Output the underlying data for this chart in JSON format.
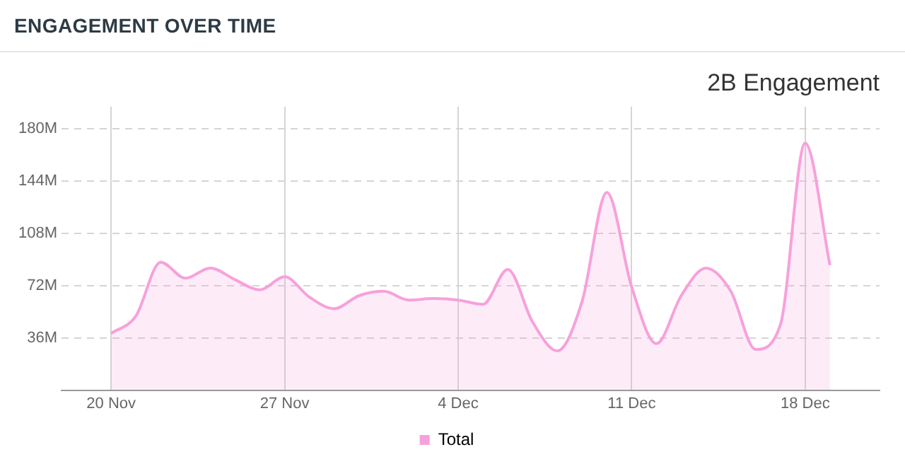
{
  "chart_data": {
    "type": "area",
    "title": "ENGAGEMENT OVER TIME",
    "subtitle": "2B Engagement",
    "x": [
      "--11-20",
      "--11-21",
      "--11-22",
      "--11-23",
      "--11-24",
      "--11-25",
      "--11-26",
      "--11-27",
      "--11-28",
      "--11-29",
      "--11-30",
      "--12-01",
      "--12-02",
      "--12-03",
      "--12-04",
      "--12-05",
      "--12-06",
      "--12-07",
      "--12-08",
      "--12-09",
      "--12-10",
      "--12-11",
      "--12-12",
      "--12-13",
      "--12-14",
      "--12-15",
      "--12-16",
      "--12-17",
      "--12-18",
      "--12-19"
    ],
    "series": [
      {
        "name": "Total",
        "color": "#f7a1db",
        "values": [
          39,
          51,
          88,
          77,
          84,
          76,
          69,
          78,
          64,
          56,
          65,
          68,
          62,
          63,
          62,
          59,
          83,
          47,
          27,
          61,
          136,
          71,
          32,
          65,
          84,
          68,
          28,
          45,
          170,
          86
        ]
      }
    ],
    "xlim": [
      "--11-18",
      "--12-21"
    ],
    "xticks": [
      {
        "value": "--11-20",
        "label": "20 Nov"
      },
      {
        "value": "--11-27",
        "label": "27 Nov"
      },
      {
        "value": "--12-04",
        "label": "4 Dec"
      },
      {
        "value": "--12-11",
        "label": "11 Dec"
      },
      {
        "value": "--12-18",
        "label": "18 Dec"
      }
    ],
    "ylim": [
      0,
      195
    ],
    "yticks": [
      {
        "value": 36,
        "label": "36M"
      },
      {
        "value": 72,
        "label": "72M"
      },
      {
        "value": 108,
        "label": "108M"
      },
      {
        "value": 144,
        "label": "144M"
      },
      {
        "value": 180,
        "label": "180M"
      }
    ],
    "grid": true,
    "legend": "bottom"
  }
}
